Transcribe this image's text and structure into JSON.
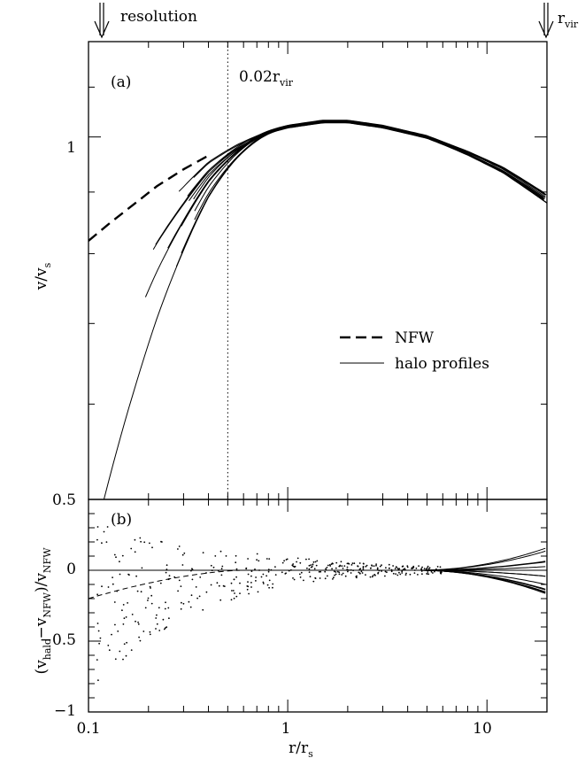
{
  "chart_data": [
    {
      "panel_label": "(a)",
      "type": "line",
      "xscale": "log",
      "yscale": "log",
      "xlim": [
        0.1,
        20
      ],
      "ylim": [
        0.5,
        1.2
      ],
      "xlabel": "r/r",
      "xlabel_sub": "s",
      "ylabel": "v/v",
      "ylabel_sub": "s",
      "y_ticklabels": [
        {
          "value": 1,
          "label": "1"
        },
        {
          "value": 0.5,
          "label": "0.5"
        }
      ],
      "vline": {
        "x": 0.5,
        "label": "0.02r",
        "label_sub": "vir",
        "style": "dotted"
      },
      "top_markers": [
        {
          "x": 0.12,
          "label": "resolution"
        },
        {
          "x": 20,
          "label": "r",
          "label_sub": "vir"
        }
      ],
      "legend": {
        "placement": "center-right",
        "entries": [
          {
            "label": "NFW",
            "style": "dashed"
          },
          {
            "label": "halo profiles",
            "style": "solid"
          }
        ]
      },
      "nfw_curve": {
        "name": "NFW",
        "style": "dashed",
        "points": [
          [
            0.1,
            0.82
          ],
          [
            0.13,
            0.85
          ],
          [
            0.17,
            0.88
          ],
          [
            0.22,
            0.91
          ],
          [
            0.3,
            0.94
          ],
          [
            0.4,
            0.97
          ],
          [
            0.55,
            0.99
          ],
          [
            0.8,
            1.01
          ],
          [
            1.0,
            1.02
          ],
          [
            1.5,
            1.03
          ],
          [
            2.0,
            1.03
          ],
          [
            3.0,
            1.02
          ],
          [
            5.0,
            1.0
          ],
          [
            8.0,
            0.97
          ],
          [
            12.0,
            0.94
          ],
          [
            20.0,
            0.89
          ]
        ]
      },
      "halo_profiles": {
        "name": "halo profiles",
        "style": "solid",
        "count": 18
      }
    },
    {
      "panel_label": "(b)",
      "type": "scatter",
      "xscale": "log",
      "xlim": [
        0.1,
        20
      ],
      "ylim": [
        -1,
        0.5
      ],
      "xlabel": "r/r",
      "xlabel_sub": "s",
      "ylabel": "(v",
      "ylabel_parts": [
        "(v",
        "halo",
        "−v",
        "NFW",
        ")/v",
        "NFW"
      ],
      "x_ticklabels": [
        {
          "value": 0.1,
          "label": "0.1"
        },
        {
          "value": 1,
          "label": "1"
        },
        {
          "value": 10,
          "label": "10"
        }
      ],
      "y_ticklabels": [
        {
          "value": 0.5,
          "label": "0.5"
        },
        {
          "value": 0,
          "label": "0"
        },
        {
          "value": -0.5,
          "label": "−0.5"
        },
        {
          "value": -1,
          "label": "−1"
        }
      ],
      "zero_line": true,
      "residual_points": 400
    }
  ]
}
